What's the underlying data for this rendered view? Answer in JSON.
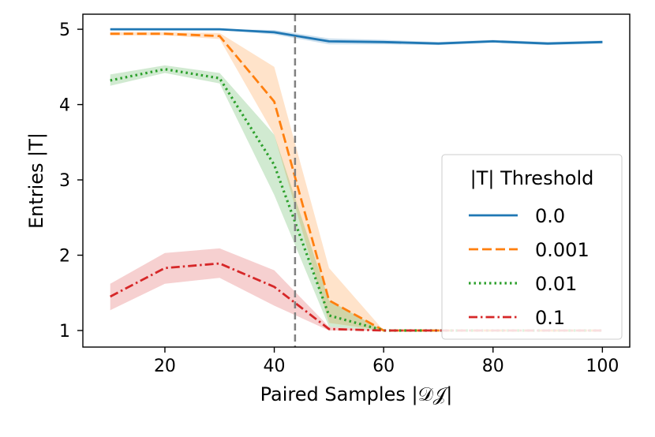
{
  "chart_data": {
    "type": "line",
    "xlabel": "Paired Samples |𝒟𝒥|",
    "ylabel": "Entries |T|",
    "xlim": [
      5,
      105
    ],
    "ylim": [
      0.78,
      5.2
    ],
    "xticks": [
      20,
      40,
      60,
      80,
      100
    ],
    "yticks": [
      1,
      2,
      3,
      4,
      5
    ],
    "xtick_labels": [
      "20",
      "40",
      "60",
      "80",
      "100"
    ],
    "ytick_labels": [
      "1",
      "2",
      "3",
      "4",
      "5"
    ],
    "vline": 43.8,
    "legend": {
      "title": "|T| Threshold",
      "position": "center-right"
    },
    "x": [
      10,
      20,
      30,
      40,
      50,
      60,
      70,
      80,
      90,
      100
    ],
    "series": [
      {
        "name": "0.0",
        "color": "#1f77b4",
        "style": "solid",
        "values": [
          5.0,
          5.0,
          5.0,
          4.96,
          4.84,
          4.83,
          4.81,
          4.84,
          4.81,
          4.83
        ],
        "lower": [
          4.99,
          4.99,
          4.99,
          4.93,
          4.8,
          4.8,
          4.79,
          4.82,
          4.79,
          4.81
        ],
        "upper": [
          5.0,
          5.0,
          5.0,
          4.99,
          4.88,
          4.86,
          4.83,
          4.86,
          4.83,
          4.85
        ]
      },
      {
        "name": "0.001",
        "color": "#ff7f0e",
        "style": "dashed",
        "values": [
          4.94,
          4.94,
          4.91,
          4.04,
          1.4,
          1.0,
          1.0,
          1.0,
          1.0,
          1.0
        ],
        "lower": [
          4.92,
          4.92,
          4.87,
          3.6,
          1.1,
          1.0,
          1.0,
          1.0,
          1.0,
          1.0
        ],
        "upper": [
          4.96,
          4.96,
          4.95,
          4.5,
          1.83,
          1.0,
          1.0,
          1.0,
          1.0,
          1.0
        ]
      },
      {
        "name": "0.01",
        "color": "#2ca02c",
        "style": "dotted",
        "values": [
          4.32,
          4.47,
          4.35,
          3.2,
          1.2,
          1.0,
          1.0,
          1.0,
          1.0,
          1.0
        ],
        "lower": [
          4.25,
          4.42,
          4.28,
          2.8,
          1.05,
          1.0,
          1.0,
          1.0,
          1.0,
          1.0
        ],
        "upper": [
          4.4,
          4.52,
          4.42,
          3.6,
          1.4,
          1.0,
          1.0,
          1.0,
          1.0,
          1.0
        ]
      },
      {
        "name": "0.1",
        "color": "#d62728",
        "style": "dashdot",
        "values": [
          1.45,
          1.83,
          1.89,
          1.58,
          1.02,
          1.0,
          1.0,
          1.0,
          1.0,
          1.0
        ],
        "lower": [
          1.27,
          1.62,
          1.7,
          1.33,
          1.0,
          1.0,
          1.0,
          1.0,
          1.0,
          1.0
        ],
        "upper": [
          1.62,
          2.03,
          2.09,
          1.8,
          1.05,
          1.0,
          1.0,
          1.0,
          1.0,
          1.0
        ]
      }
    ]
  }
}
